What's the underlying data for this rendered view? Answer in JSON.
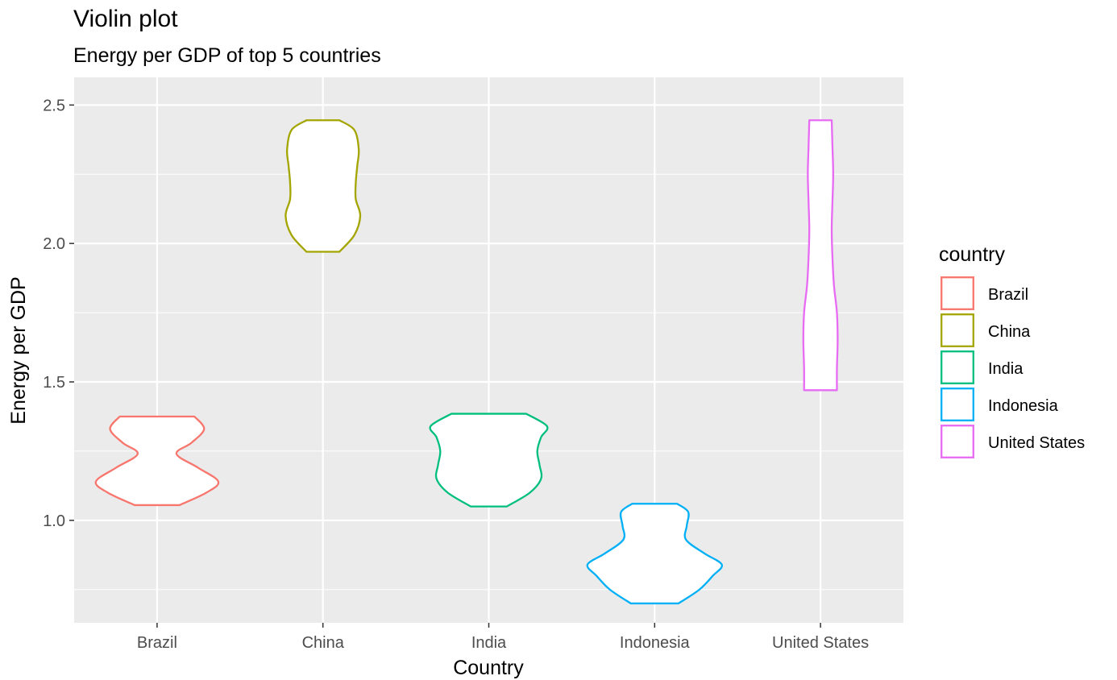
{
  "chart_data": {
    "type": "violin",
    "title": "Violin plot",
    "subtitle": "Energy per GDP of top 5 countries",
    "xlabel": "Country",
    "ylabel": "Energy per GDP",
    "categories": [
      "Brazil",
      "China",
      "India",
      "Indonesia",
      "United States"
    ],
    "colors": [
      "#F8766D",
      "#A3A500",
      "#00BF7D",
      "#00B0F6",
      "#E76BF3"
    ],
    "ylim": [
      0.63,
      2.6
    ],
    "yticks": [
      1.0,
      1.5,
      2.0,
      2.5
    ],
    "ytick_labels": [
      "1.0",
      "1.5",
      "2.0",
      "2.5"
    ],
    "grid": true,
    "legend": {
      "title": "country",
      "position": "right"
    },
    "series": [
      {
        "name": "Brazil",
        "min": 1.055,
        "max": 1.375,
        "profile": [
          [
            1.055,
            0.3
          ],
          [
            1.1,
            0.66
          ],
          [
            1.14,
            0.82
          ],
          [
            1.19,
            0.55
          ],
          [
            1.24,
            0.26
          ],
          [
            1.28,
            0.46
          ],
          [
            1.33,
            0.63
          ],
          [
            1.375,
            0.5
          ]
        ]
      },
      {
        "name": "China",
        "min": 1.97,
        "max": 2.445,
        "profile": [
          [
            1.97,
            0.22
          ],
          [
            2.03,
            0.42
          ],
          [
            2.1,
            0.5
          ],
          [
            2.16,
            0.44
          ],
          [
            2.22,
            0.44
          ],
          [
            2.28,
            0.46
          ],
          [
            2.34,
            0.48
          ],
          [
            2.41,
            0.42
          ],
          [
            2.445,
            0.22
          ]
        ]
      },
      {
        "name": "India",
        "min": 1.05,
        "max": 1.385,
        "profile": [
          [
            1.05,
            0.24
          ],
          [
            1.1,
            0.55
          ],
          [
            1.15,
            0.7
          ],
          [
            1.2,
            0.68
          ],
          [
            1.25,
            0.65
          ],
          [
            1.3,
            0.7
          ],
          [
            1.34,
            0.78
          ],
          [
            1.385,
            0.5
          ]
        ]
      },
      {
        "name": "Indonesia",
        "min": 0.7,
        "max": 1.06,
        "profile": [
          [
            0.7,
            0.32
          ],
          [
            0.75,
            0.6
          ],
          [
            0.8,
            0.78
          ],
          [
            0.84,
            0.9
          ],
          [
            0.88,
            0.67
          ],
          [
            0.93,
            0.42
          ],
          [
            0.98,
            0.43
          ],
          [
            1.03,
            0.45
          ],
          [
            1.06,
            0.3
          ]
        ]
      },
      {
        "name": "United States",
        "min": 1.47,
        "max": 2.445,
        "profile": [
          [
            1.47,
            0.22
          ],
          [
            1.55,
            0.22
          ],
          [
            1.65,
            0.23
          ],
          [
            1.75,
            0.22
          ],
          [
            1.85,
            0.18
          ],
          [
            1.95,
            0.16
          ],
          [
            2.05,
            0.15
          ],
          [
            2.15,
            0.16
          ],
          [
            2.25,
            0.17
          ],
          [
            2.35,
            0.16
          ],
          [
            2.445,
            0.15
          ]
        ]
      }
    ]
  }
}
